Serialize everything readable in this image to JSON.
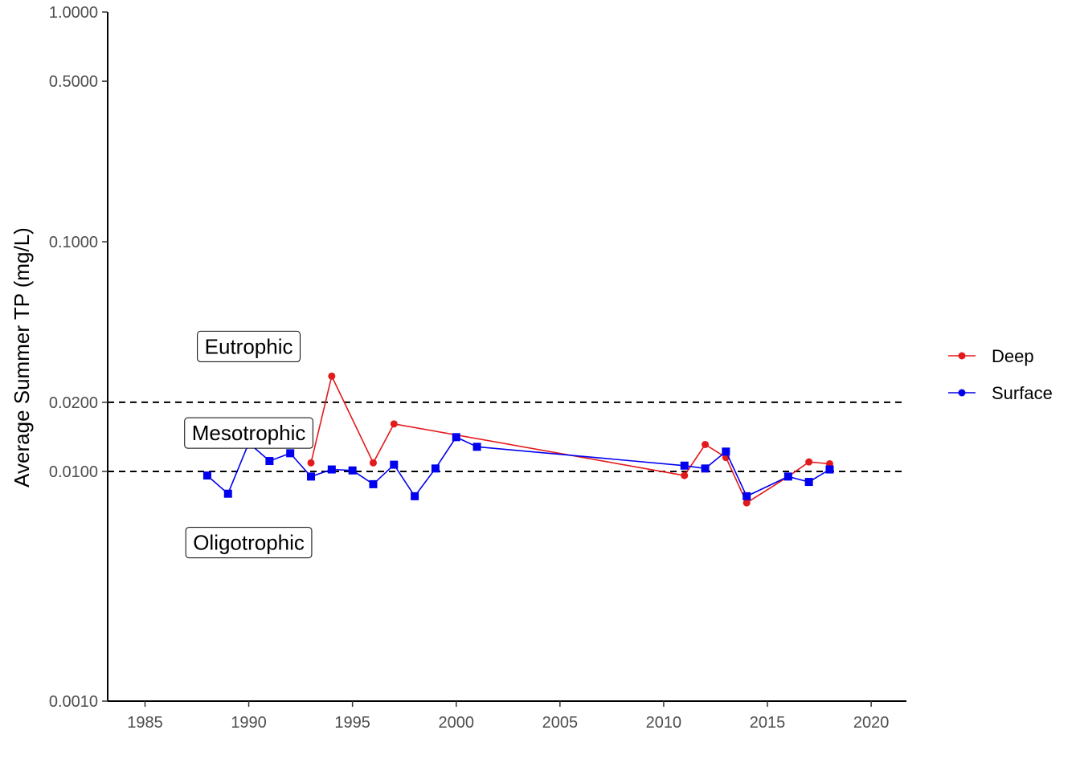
{
  "chart_data": {
    "type": "line",
    "title": "",
    "xlabel": "",
    "ylabel": "Average Summer TP (mg/L)",
    "y_scale": "log",
    "xlim": [
      1983.2,
      2021.7
    ],
    "ylim": [
      0.001,
      1.0
    ],
    "x_ticks": [
      1985,
      1990,
      1995,
      2000,
      2005,
      2010,
      2015,
      2020
    ],
    "y_ticks": [
      0.001,
      0.01,
      0.02,
      0.1,
      0.5,
      1.0
    ],
    "y_tick_labels": [
      "0.0010",
      "0.0100",
      "0.0200",
      "0.1000",
      "0.5000",
      "1.0000"
    ],
    "grid": false,
    "legend_position": "right",
    "thresholds": [
      0.02,
      0.01
    ],
    "zone_labels": [
      {
        "text": "Eutrophic",
        "x": 1990,
        "y": 0.035
      },
      {
        "text": "Mesotrophic",
        "x": 1990,
        "y": 0.0147
      },
      {
        "text": "Oligotrophic",
        "x": 1990,
        "y": 0.0049
      }
    ],
    "series": [
      {
        "name": "Deep",
        "color": "#e31a1c",
        "marker": "circle",
        "x": [
          1993,
          1994,
          1996,
          1997,
          2011,
          2012,
          2013,
          2014,
          2016,
          2017,
          2018
        ],
        "y": [
          0.0109,
          0.026,
          0.0109,
          0.0161,
          0.0096,
          0.0131,
          0.0115,
          0.0073,
          0.0095,
          0.011,
          0.0108
        ]
      },
      {
        "name": "Surface",
        "color": "#0000ee",
        "marker": "square",
        "x": [
          1988,
          1989,
          1990,
          1991,
          1992,
          1993,
          1994,
          1995,
          1996,
          1997,
          1998,
          1999,
          2000,
          2001,
          2011,
          2012,
          2013,
          2014,
          2016,
          2017,
          2018
        ],
        "y": [
          0.0096,
          0.008,
          0.0133,
          0.0111,
          0.012,
          0.0095,
          0.0102,
          0.0101,
          0.0088,
          0.0107,
          0.0078,
          0.0103,
          0.0141,
          0.0128,
          0.0106,
          0.0103,
          0.0122,
          0.0078,
          0.0095,
          0.009,
          0.0102
        ]
      }
    ]
  }
}
